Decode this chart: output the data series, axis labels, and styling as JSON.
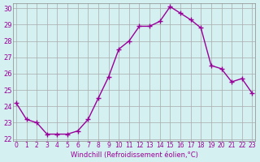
{
  "x": [
    0,
    1,
    2,
    3,
    4,
    5,
    6,
    7,
    8,
    9,
    10,
    11,
    12,
    13,
    14,
    15,
    16,
    17,
    18,
    19,
    20,
    21,
    22,
    23
  ],
  "y": [
    24.2,
    23.2,
    23.0,
    22.3,
    22.3,
    22.3,
    22.5,
    23.2,
    24.5,
    25.8,
    27.5,
    28.0,
    28.9,
    28.9,
    29.2,
    30.1,
    29.7,
    29.3,
    28.8,
    26.5,
    26.3,
    25.5,
    25.7,
    24.8
  ],
  "xlabel": "Windchill (Refroidissement éolien,°C)",
  "ylim": [
    22,
    30
  ],
  "xlim": [
    0,
    23
  ],
  "line_color": "#990099",
  "marker": "+",
  "bg_color": "#d4f0f0",
  "grid_color": "#aaaaaa",
  "tick_label_color": "#990099",
  "xlabel_color": "#990099",
  "yticks": [
    22,
    23,
    24,
    25,
    26,
    27,
    28,
    29,
    30
  ],
  "xticks": [
    0,
    1,
    2,
    3,
    4,
    5,
    6,
    7,
    8,
    9,
    10,
    11,
    12,
    13,
    14,
    15,
    16,
    17,
    18,
    19,
    20,
    21,
    22,
    23
  ]
}
